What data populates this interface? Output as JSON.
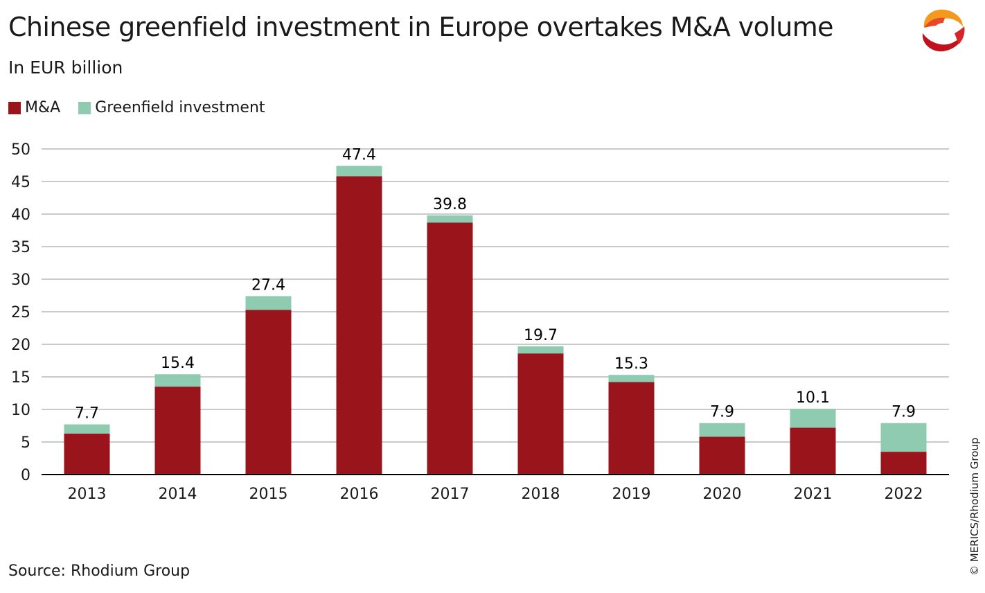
{
  "header": {
    "title": "Chinese greenfield investment in Europe overtakes M&A volume",
    "subtitle": "In EUR billion"
  },
  "footer": {
    "source": "Source: Rhodium Group",
    "credit": "© MERICS/Rhodium Group"
  },
  "logo": {
    "icon": "merics-logo-icon",
    "colors": [
      "#c0121d",
      "#e8472a",
      "#f39a1e"
    ]
  },
  "chart_data": {
    "type": "bar",
    "stacked": true,
    "categories": [
      "2013",
      "2014",
      "2015",
      "2016",
      "2017",
      "2018",
      "2019",
      "2020",
      "2021",
      "2022"
    ],
    "series": [
      {
        "name": "M&A",
        "color": "#9a141b",
        "values": [
          6.3,
          13.5,
          25.3,
          45.8,
          38.7,
          18.6,
          14.2,
          5.8,
          7.2,
          3.5
        ]
      },
      {
        "name": "Greenfield investment",
        "color": "#8ecbb0",
        "values": [
          1.4,
          1.9,
          2.1,
          1.6,
          1.1,
          1.1,
          1.1,
          2.1,
          2.9,
          4.4
        ]
      }
    ],
    "totals": [
      "7.7",
      "15.4",
      "27.4",
      "47.4",
      "39.8",
      "19.7",
      "15.3",
      "7.9",
      "10.1",
      "7.9"
    ],
    "y_ticks": [
      "0",
      "5",
      "10",
      "15",
      "20",
      "25",
      "30",
      "35",
      "40",
      "45",
      "50"
    ],
    "ylim": [
      0,
      50
    ],
    "grid": true,
    "legend_position": "top-left"
  }
}
